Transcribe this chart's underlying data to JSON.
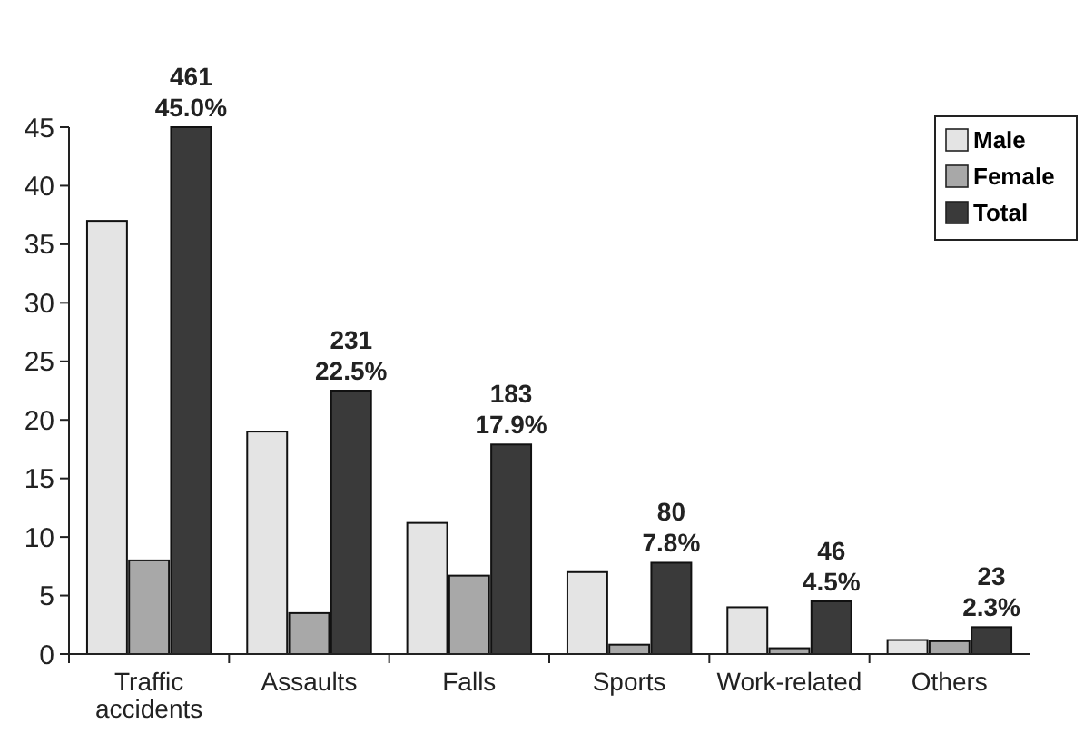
{
  "chart_data": {
    "type": "bar",
    "categories": [
      "Traffic\naccidents",
      "Assaults",
      "Falls",
      "Sports",
      "Work-related",
      "Others"
    ],
    "series": [
      {
        "name": "Male",
        "color": "#e4e4e4",
        "values": [
          37,
          19,
          11.2,
          7,
          4,
          1.2
        ]
      },
      {
        "name": "Female",
        "color": "#a8a8a8",
        "values": [
          8,
          3.5,
          6.7,
          0.8,
          0.5,
          1.1
        ]
      },
      {
        "name": "Total",
        "color": "#3a3a3a",
        "values": [
          45,
          22.5,
          17.9,
          7.8,
          4.5,
          2.3
        ],
        "value_labels": [
          "461\n45.0%",
          "231\n22.5%",
          "183\n17.9%",
          "80\n7.8%",
          "46\n4.5%",
          "23\n2.3%"
        ]
      }
    ],
    "ylim": [
      0,
      45
    ],
    "yticks": [
      0,
      5,
      10,
      15,
      20,
      25,
      30,
      35,
      40,
      45
    ],
    "grid": false,
    "legend": "top right"
  }
}
